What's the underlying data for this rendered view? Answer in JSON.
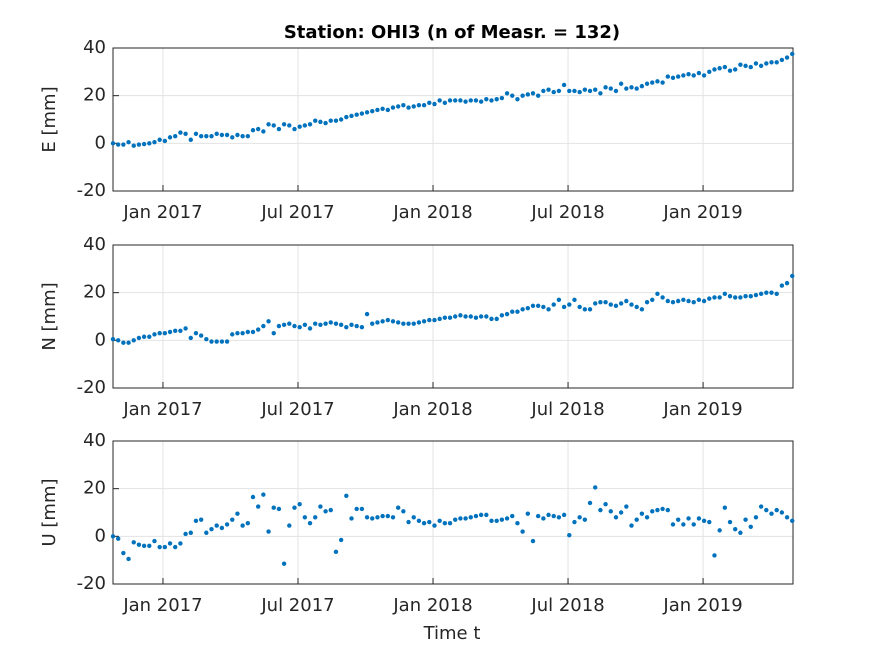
{
  "chart_data": {
    "type": "scatter",
    "title": "Station: OHI3 (n of Measr. = 132)",
    "xlabel": "Time t",
    "color": "#0072bd",
    "grid": true,
    "xlim": [
      2016.815,
      2019.333
    ],
    "xticks": [
      {
        "value": 2017,
        "label": "Jan 2017"
      },
      {
        "value": 2017.5,
        "label": "Jul 2017"
      },
      {
        "value": 2018,
        "label": "Jan 2018"
      },
      {
        "value": 2018.5,
        "label": "Jul 2018"
      },
      {
        "value": 2019,
        "label": "Jan 2019"
      }
    ],
    "x": [
      2016.815,
      2016.8342,
      2016.8534,
      2016.8726,
      2016.8918,
      2016.911,
      2016.9302,
      2016.9494,
      2016.9686,
      2016.9878,
      2017.007,
      2017.0262,
      2017.0454,
      2017.0646,
      2017.0838,
      2017.103,
      2017.1222,
      2017.1414,
      2017.1606,
      2017.1798,
      2017.199,
      2017.2182,
      2017.2374,
      2017.2566,
      2017.2758,
      2017.295,
      2017.3142,
      2017.3334,
      2017.3526,
      2017.3718,
      2017.391,
      2017.4102,
      2017.4294,
      2017.4486,
      2017.4678,
      2017.487,
      2017.5062,
      2017.5254,
      2017.5446,
      2017.5638,
      2017.583,
      2017.6022,
      2017.6214,
      2017.6406,
      2017.6598,
      2017.679,
      2017.6982,
      2017.7174,
      2017.7366,
      2017.7558,
      2017.775,
      2017.7942,
      2017.8134,
      2017.8326,
      2017.8518,
      2017.871,
      2017.8902,
      2017.9094,
      2017.9286,
      2017.9478,
      2017.967,
      2017.9862,
      2018.0054,
      2018.0246,
      2018.0438,
      2018.063,
      2018.0822,
      2018.1014,
      2018.1206,
      2018.1398,
      2018.159,
      2018.1782,
      2018.1974,
      2018.2166,
      2018.2358,
      2018.255,
      2018.2742,
      2018.2934,
      2018.3126,
      2018.3318,
      2018.351,
      2018.3702,
      2018.3894,
      2018.4086,
      2018.4278,
      2018.447,
      2018.4662,
      2018.4854,
      2018.5046,
      2018.5238,
      2018.543,
      2018.5622,
      2018.5814,
      2018.6006,
      2018.6198,
      2018.639,
      2018.6582,
      2018.6774,
      2018.6966,
      2018.7158,
      2018.735,
      2018.7542,
      2018.7734,
      2018.7926,
      2018.8118,
      2018.831,
      2018.8502,
      2018.8694,
      2018.8886,
      2018.9078,
      2018.927,
      2018.9462,
      2018.9654,
      2018.9846,
      2019.0038,
      2019.023,
      2019.0422,
      2019.0614,
      2019.0806,
      2019.0998,
      2019.119,
      2019.1382,
      2019.1574,
      2019.1766,
      2019.1958,
      2019.215,
      2019.2342,
      2019.2534,
      2019.2726,
      2019.2918,
      2019.311,
      2019.3302
    ],
    "panels": [
      {
        "ylabel": "E [mm]",
        "ylim": [
          -20,
          40
        ],
        "yticks": [
          -20,
          0,
          20,
          40
        ],
        "values": [
          0,
          -0.5,
          -0.5,
          0.5,
          -1,
          -0.5,
          -0.3,
          0,
          0.5,
          1.5,
          1,
          2.5,
          3,
          4.5,
          4,
          1.5,
          4,
          3,
          3,
          3,
          4,
          3.5,
          3.5,
          2.5,
          3.5,
          3,
          3,
          5.5,
          6,
          5,
          8,
          7.5,
          6,
          8,
          7.5,
          6,
          7,
          7.5,
          8,
          9.5,
          9,
          8.5,
          9.5,
          9.5,
          10,
          11,
          11.5,
          12,
          12.5,
          13,
          13.5,
          14,
          14.5,
          14,
          15,
          15.5,
          16,
          15,
          15.5,
          16,
          16,
          17,
          16.5,
          18,
          17,
          18,
          18,
          18,
          17.5,
          18,
          18,
          17.5,
          18.5,
          18,
          18.5,
          19,
          21,
          20,
          18.5,
          20,
          20.5,
          21,
          20,
          22,
          22.5,
          21.5,
          22,
          24.5,
          22,
          22,
          21.5,
          22.5,
          22,
          22.5,
          21,
          23.5,
          23,
          22,
          25,
          23,
          23.5,
          23,
          24,
          25,
          25.5,
          26,
          25.5,
          28,
          27.5,
          28,
          28.5,
          29,
          28.5,
          29.5,
          28.5,
          30,
          31,
          31.5,
          32,
          30.5,
          31,
          33,
          32.5,
          32,
          33.5,
          32.5,
          33.5,
          34,
          34,
          35,
          36,
          37.5
        ]
      },
      {
        "ylabel": "N [mm]",
        "ylim": [
          -20,
          40
        ],
        "yticks": [
          -20,
          0,
          20,
          40
        ],
        "values": [
          0.5,
          0,
          -1,
          -1,
          0,
          1,
          1.5,
          1.5,
          2.5,
          3,
          3,
          3.5,
          4,
          4,
          5,
          1,
          3,
          2,
          0.5,
          -0.5,
          -0.5,
          -0.5,
          -0.5,
          2.5,
          3,
          3,
          3.5,
          3.5,
          4.5,
          6,
          8,
          3,
          6,
          6.5,
          7,
          6,
          5.5,
          6.5,
          5,
          7,
          6.5,
          7,
          7.5,
          7,
          6.5,
          5.5,
          6.5,
          6,
          5.5,
          11,
          7,
          7.5,
          8,
          8.5,
          8,
          7.5,
          7,
          7,
          7,
          7.5,
          8,
          8.5,
          8.5,
          9,
          9.5,
          9.5,
          10,
          10.5,
          10,
          10,
          9.5,
          10,
          10,
          9,
          9,
          10.5,
          11,
          12,
          12,
          13,
          13.5,
          14.5,
          14.5,
          14,
          13,
          15,
          17,
          14,
          15,
          17,
          14,
          13,
          13,
          15.5,
          16,
          16,
          15,
          14.5,
          15.5,
          16.5,
          15,
          14,
          13,
          16,
          17,
          19.5,
          18,
          16.5,
          16,
          16.5,
          17,
          16.5,
          16,
          17,
          16.5,
          17.5,
          18,
          18,
          19.5,
          18.5,
          18,
          18,
          18.5,
          18.5,
          19,
          19.5,
          20,
          20,
          19.5,
          23,
          24,
          27
        ]
      },
      {
        "ylabel": "U [mm]",
        "ylim": [
          -20,
          40
        ],
        "yticks": [
          -20,
          0,
          20,
          40
        ],
        "values": [
          0,
          -1,
          -7,
          -9.5,
          -2.5,
          -3.5,
          -4,
          -4,
          -2,
          -4.5,
          -4.5,
          -3,
          -4.5,
          -3,
          1,
          1.5,
          6.5,
          7,
          1.5,
          3,
          4.5,
          3.5,
          5,
          7,
          9.5,
          4.5,
          5.5,
          16.5,
          12.5,
          17.5,
          2,
          12,
          11.5,
          -11.5,
          4.5,
          12,
          13.5,
          8,
          5.5,
          8,
          12.5,
          10.5,
          11,
          -6.5,
          -1.5,
          17,
          7.5,
          11.5,
          11.5,
          8,
          7.5,
          8,
          8.5,
          8.5,
          8,
          12,
          10.5,
          6,
          8,
          6.5,
          5.5,
          6,
          4.5,
          6.5,
          5.5,
          5.5,
          7,
          7.5,
          7.5,
          8,
          8.5,
          9,
          9,
          6.5,
          6.5,
          7,
          7.5,
          8.5,
          5.5,
          2,
          9.5,
          -2,
          8.5,
          7.5,
          9,
          8.5,
          8,
          9,
          0.5,
          6,
          8,
          7,
          14,
          20.5,
          11,
          13.5,
          10.5,
          8,
          10,
          12.5,
          4.5,
          7,
          9.5,
          8,
          10.5,
          11,
          11.5,
          11,
          5,
          7,
          5,
          7.5,
          5,
          7.5,
          6.5,
          6,
          -8,
          2.5,
          12,
          6,
          3,
          1.5,
          7,
          4,
          8,
          12.5,
          11,
          9.5,
          11,
          10,
          8,
          6.5
        ]
      }
    ]
  }
}
